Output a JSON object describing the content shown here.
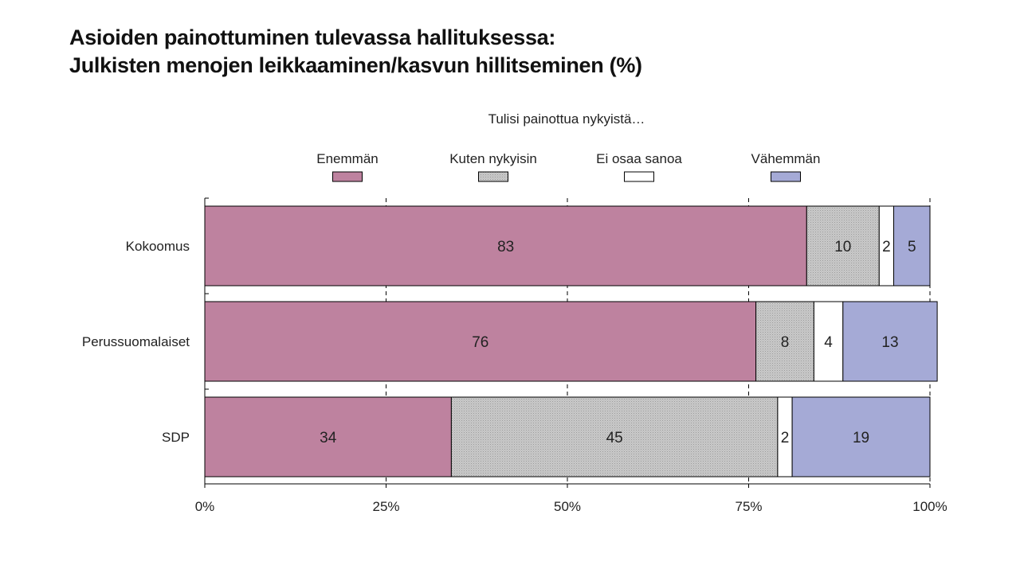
{
  "title": {
    "line1": "Asioiden painottuminen tulevassa hallituksessa:",
    "line2": "Julkisten menojen leikkaaminen/kasvun hillitseminen (%)"
  },
  "chart_data": {
    "type": "bar",
    "orientation": "horizontal",
    "stacked": true,
    "legend_title": "Tulisi painottua nykyistä…",
    "legend_position": "top",
    "categories": [
      "Kokoomus",
      "Perussuomalaiset",
      "SDP"
    ],
    "series": [
      {
        "name": "Enemmän",
        "values": [
          83,
          76,
          34
        ],
        "color": "#be829f",
        "pattern": "solid"
      },
      {
        "name": "Kuten nykyisin",
        "values": [
          10,
          8,
          45
        ],
        "color": "#c4c4c4",
        "pattern": "dots"
      },
      {
        "name": "Ei osaa sanoa",
        "values": [
          2,
          4,
          2
        ],
        "color": "#ffffff",
        "pattern": "solid"
      },
      {
        "name": "Vähemmän",
        "values": [
          5,
          13,
          19
        ],
        "color": "#a5aad6",
        "pattern": "solid"
      }
    ],
    "xlim": [
      0,
      100
    ],
    "x_ticks": [
      0,
      25,
      50,
      75,
      100
    ],
    "x_tick_labels": [
      "0%",
      "25%",
      "50%",
      "75%",
      "100%"
    ],
    "grid": "dashed vertical"
  }
}
